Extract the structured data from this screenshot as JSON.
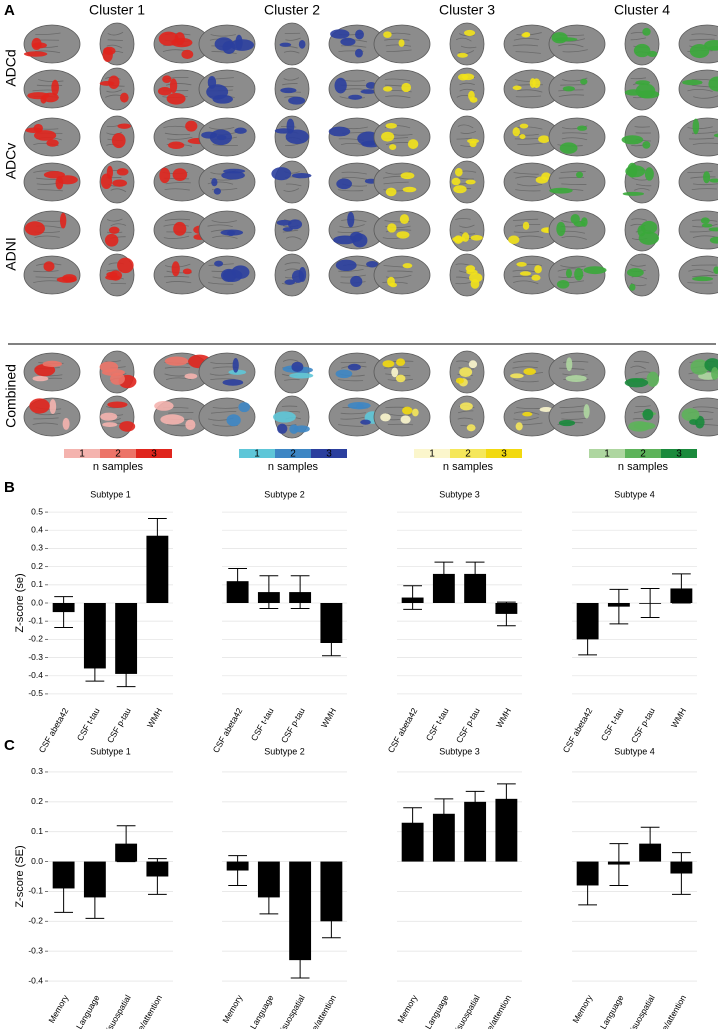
{
  "panel_a": {
    "label": "A",
    "clusters": [
      "Cluster 1",
      "Cluster 2",
      "Cluster 3",
      "Cluster 4"
    ],
    "rows": [
      "ADCd",
      "ADCv",
      "ADNI",
      "Combined"
    ],
    "legends": [
      {
        "keys": [
          "1",
          "2",
          "3"
        ],
        "colors": [
          "#f4b3ae",
          "#ec7468",
          "#e0251d"
        ],
        "caption": "n samples"
      },
      {
        "keys": [
          "1",
          "2",
          "3"
        ],
        "colors": [
          "#5ec6d8",
          "#3d86c4",
          "#2b3f9e"
        ],
        "caption": "n samples"
      },
      {
        "keys": [
          "1",
          "2",
          "3"
        ],
        "colors": [
          "#fbf6cc",
          "#f5e75a",
          "#f2d90f"
        ],
        "caption": "n samples"
      },
      {
        "keys": [
          "1",
          "2",
          "3"
        ],
        "colors": [
          "#aed6a0",
          "#5db35a",
          "#1a8a3c"
        ],
        "caption": "n samples"
      }
    ]
  },
  "panel_b_label": "B",
  "panel_c_label": "C",
  "chart_data": [
    {
      "type": "bar",
      "title": "Subtype 1",
      "ylabel": "Z-score (se)",
      "categories": [
        "CSF abeta42",
        "CSF t-tau",
        "CSF p-tau",
        "WMH"
      ],
      "values": [
        -0.05,
        -0.36,
        -0.39,
        0.37
      ],
      "errors": [
        0.085,
        0.07,
        0.07,
        0.095
      ],
      "color": "#000000",
      "ylim": [
        -0.55,
        0.55
      ],
      "yticks": [
        -0.5,
        -0.4,
        -0.3,
        -0.2,
        -0.1,
        {
          "value": 0,
          "label": "0.0"
        },
        0.1,
        0.2,
        0.3,
        0.4,
        0.5
      ],
      "grid": true
    },
    {
      "type": "bar",
      "title": "Subtype 2",
      "categories": [
        "CSF abeta42",
        "CSF t-tau",
        "CSF p-tau",
        "WMH"
      ],
      "values": [
        0.12,
        0.06,
        0.06,
        -0.22
      ],
      "errors": [
        0.07,
        0.09,
        0.09,
        0.07
      ],
      "color": "#000000",
      "ylim": [
        -0.55,
        0.55
      ],
      "yticks": [
        -0.5,
        -0.4,
        -0.3,
        -0.2,
        -0.1,
        0,
        0.1,
        0.2,
        0.3,
        0.4,
        0.5
      ],
      "grid": true
    },
    {
      "type": "bar",
      "title": "Subtype 3",
      "categories": [
        "CSF abeta42",
        "CSF t-tau",
        "CSF p-tau",
        "WMH"
      ],
      "values": [
        0.03,
        0.16,
        0.16,
        -0.06
      ],
      "errors": [
        0.065,
        0.065,
        0.065,
        0.065
      ],
      "color": "#000000",
      "ylim": [
        -0.55,
        0.55
      ],
      "yticks": [
        -0.5,
        -0.4,
        -0.3,
        -0.2,
        -0.1,
        0,
        0.1,
        0.2,
        0.3,
        0.4,
        0.5
      ],
      "grid": true
    },
    {
      "type": "bar",
      "title": "Subtype 4",
      "categories": [
        "CSF abeta42",
        "CSF t-tau",
        "CSF p-tau",
        "WMH"
      ],
      "values": [
        -0.2,
        -0.02,
        0,
        0.08
      ],
      "errors": [
        0.085,
        0.095,
        0.08,
        0.08
      ],
      "color": "#000000",
      "ylim": [
        -0.55,
        0.55
      ],
      "yticks": [
        -0.5,
        -0.4,
        -0.3,
        -0.2,
        -0.1,
        0,
        0.1,
        0.2,
        0.3,
        0.4,
        0.5
      ],
      "grid": true
    },
    {
      "type": "bar",
      "title": "Subtype 1",
      "ylabel": "Z-score (SE)",
      "categories": [
        "Memory",
        "Language",
        "Visuospatial",
        "Executive/attention"
      ],
      "values": [
        -0.09,
        -0.12,
        0.06,
        -0.05
      ],
      "errors": [
        0.08,
        0.07,
        0.06,
        0.06
      ],
      "color": "#000000",
      "ylim": [
        -0.43,
        0.33
      ],
      "yticks": [
        -0.4,
        -0.3,
        -0.2,
        -0.1,
        {
          "value": 0,
          "label": "0.0"
        },
        0.1,
        0.2,
        0.3
      ],
      "grid": true
    },
    {
      "type": "bar",
      "title": "Subtype 2",
      "categories": [
        "Memory",
        "Language",
        "Visuospatial",
        "Executive/attention"
      ],
      "values": [
        -0.03,
        -0.12,
        -0.33,
        -0.2
      ],
      "errors": [
        0.05,
        0.055,
        0.06,
        0.055
      ],
      "color": "#000000",
      "ylim": [
        -0.43,
        0.33
      ],
      "yticks": [
        -0.4,
        -0.3,
        -0.2,
        -0.1,
        0,
        0.1,
        0.2,
        0.3
      ],
      "grid": true
    },
    {
      "type": "bar",
      "title": "Subtype 3",
      "categories": [
        "Memory",
        "Language",
        "Visuospatial",
        "Executive/attention"
      ],
      "values": [
        0.13,
        0.16,
        0.2,
        0.21
      ],
      "errors": [
        0.05,
        0.05,
        0.035,
        0.05
      ],
      "color": "#000000",
      "ylim": [
        -0.43,
        0.33
      ],
      "yticks": [
        -0.4,
        -0.3,
        -0.2,
        -0.1,
        0,
        0.1,
        0.2,
        0.3
      ],
      "grid": true
    },
    {
      "type": "bar",
      "title": "Subtype 4",
      "categories": [
        "Memory",
        "Language",
        "Visuospatial",
        "Executive/attention"
      ],
      "values": [
        -0.08,
        -0.01,
        0.06,
        -0.04
      ],
      "errors": [
        0.065,
        0.07,
        0.055,
        0.07
      ],
      "color": "#000000",
      "ylim": [
        -0.43,
        0.33
      ],
      "yticks": [
        -0.4,
        -0.3,
        -0.2,
        -0.1,
        0,
        0.1,
        0.2,
        0.3
      ],
      "grid": true
    }
  ]
}
